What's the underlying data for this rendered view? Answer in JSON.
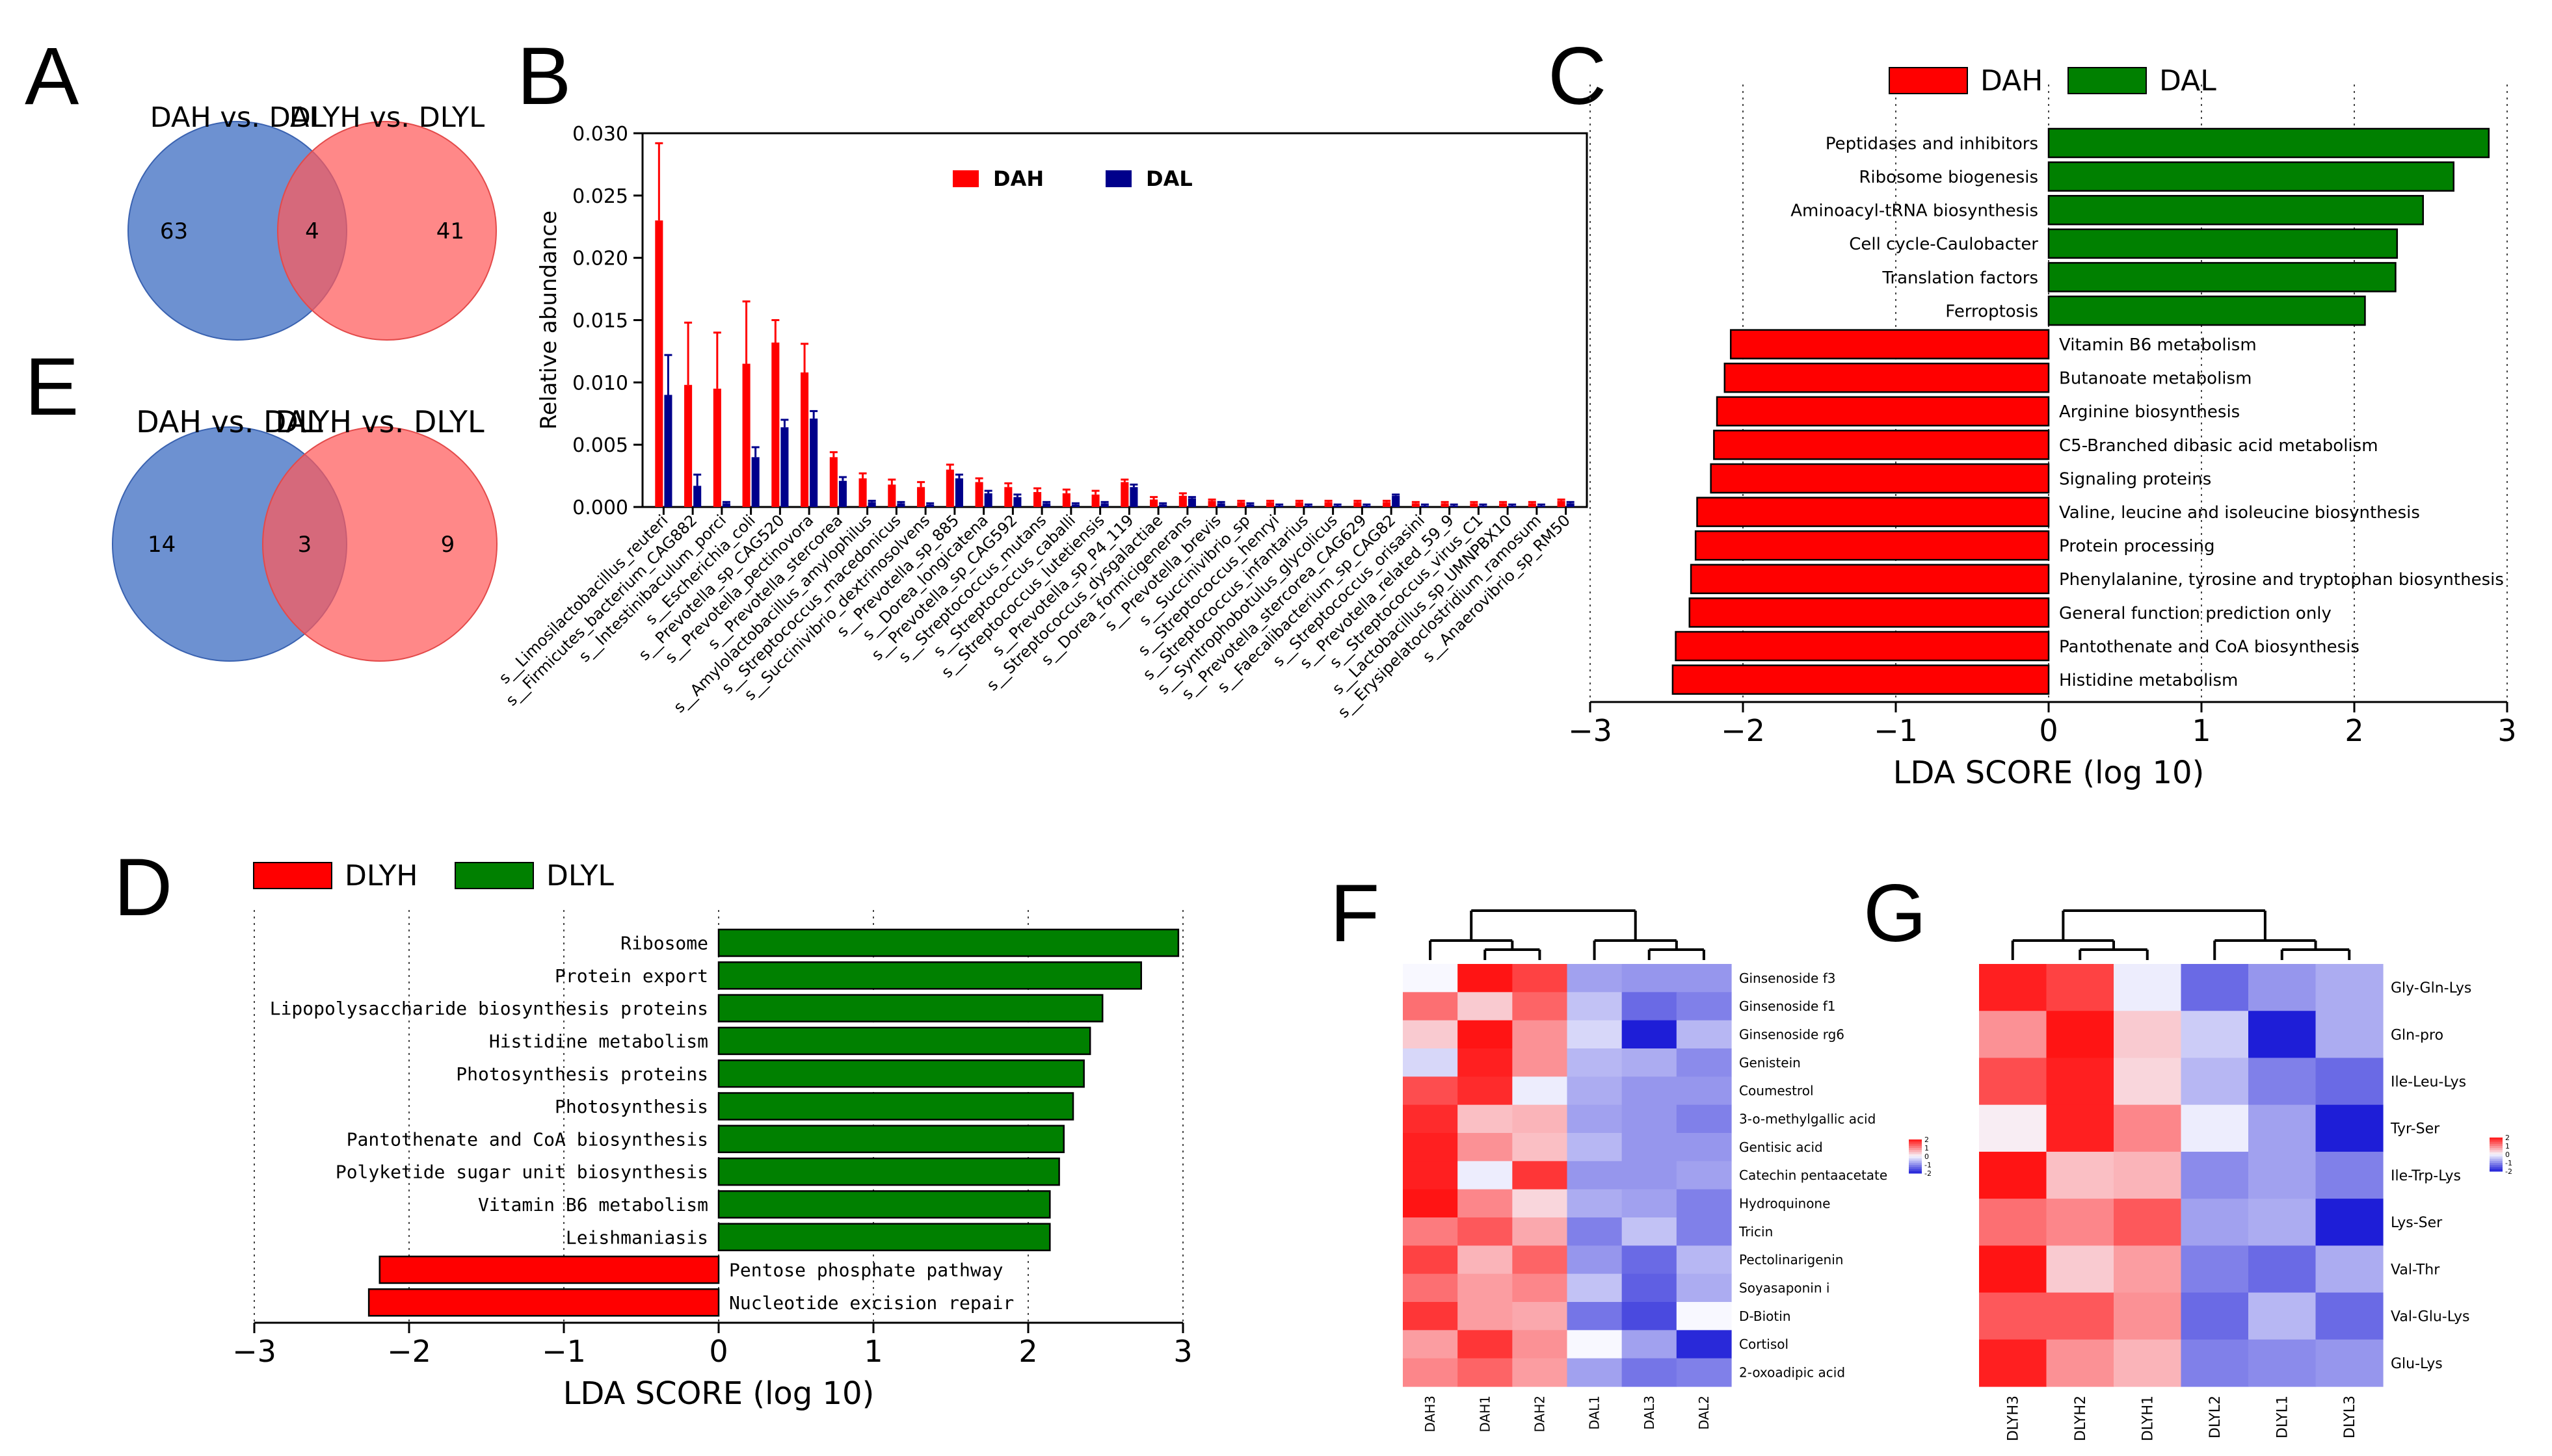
{
  "panels": {
    "A": "A",
    "B": "B",
    "C": "C",
    "D": "D",
    "E": "E",
    "F": "F",
    "G": "G"
  },
  "colors": {
    "red": "#ff0000",
    "green": "#008000",
    "navy": "#00008b",
    "venn_blue": "#4472c4",
    "venn_red": "#ff5a5a"
  },
  "chart_data": [
    {
      "id": "A",
      "type": "venn",
      "labels": [
        "DAH vs. DAL",
        "DLYH vs. DLYL"
      ],
      "left_only": "63",
      "overlap": "4",
      "right_only": "41"
    },
    {
      "id": "E",
      "type": "venn",
      "labels": [
        "DAH vs. DAL",
        "DLYH vs. DLYL"
      ],
      "left_only": "14",
      "overlap": "3",
      "right_only": "9"
    },
    {
      "id": "B",
      "type": "bar",
      "ylabel": "Relative abundance",
      "ylim": [
        0,
        0.03
      ],
      "yticks": [
        "0.000",
        "0.005",
        "0.010",
        "0.015",
        "0.020",
        "0.025",
        "0.030"
      ],
      "legend": [
        "DAH",
        "DAL"
      ],
      "categories": [
        "s__Limosilactobacillus_reuteri",
        "s__Firmicutes_bacterium_CAG882",
        "s__Intestinibaculum_porci",
        "s__Escherichia_coli",
        "s__Prevotella_sp_CAG520",
        "s__Prevotella_pectinovora",
        "s__Prevotella_stercorea",
        "s__Amylolactobacillus_amylophilus",
        "s__Streptococcus_macedonicus",
        "s__Succinivibrio_dextrinosolvens",
        "s__Prevotella_sp_885",
        "s__Dorea_longicatena",
        "s__Prevotella_sp_CAG592",
        "s__Streptococcus_mutans",
        "s__Streptococcus_caballi",
        "s__Streptococcus_lutetiensis",
        "s__Prevotella_sp_P4_119",
        "s__Streptococcus_dysgalactiae",
        "s__Dorea_formicigenerans",
        "s__Prevotella_brevis",
        "s__Succinivibrio_sp",
        "s__Streptococcus_henryi",
        "s__Streptococcus_infantarius",
        "s__Syntrophobotulus_glycolicus",
        "s__Prevotella_stercorea_CAG629",
        "s__Faecalibacterium_sp_CAG82",
        "s__Streptococcus_orisasini",
        "s__Prevotella_related_59_9",
        "s__Streptococcus_virus_C1",
        "s__Lactobacillus_sp_UMNPBX10",
        "s__Erysipelatoclostridium_ramosum",
        "s__Anaerovibrio_sp_RM50"
      ],
      "series": [
        {
          "name": "DAH",
          "values": [
            0.023,
            0.0098,
            0.0095,
            0.0115,
            0.0132,
            0.0108,
            0.004,
            0.0023,
            0.0018,
            0.0016,
            0.003,
            0.002,
            0.0016,
            0.0012,
            0.0011,
            0.001,
            0.002,
            0.0006,
            0.0009,
            0.0005,
            0.0004,
            0.0004,
            0.0004,
            0.0004,
            0.0004,
            0.0004,
            0.0003,
            0.0003,
            0.0003,
            0.0003,
            0.0003,
            0.0005
          ],
          "errors": [
            0.0062,
            0.005,
            0.0045,
            0.005,
            0.0018,
            0.0023,
            0.0004,
            0.0004,
            0.0004,
            0.0004,
            0.0004,
            0.0003,
            0.0003,
            0.0003,
            0.0003,
            0.0003,
            0.0002,
            0.0002,
            0.0002,
            0.0001,
            0.0001,
            0.0001,
            0.0001,
            0.0001,
            0.0001,
            0.0001,
            0.0001,
            0.0001,
            0.0001,
            0.0001,
            0.0001,
            0.0001
          ]
        },
        {
          "name": "DAL",
          "values": [
            0.009,
            0.0017,
            0.0003,
            0.004,
            0.0064,
            0.0071,
            0.0021,
            0.0004,
            0.0003,
            0.0002,
            0.0023,
            0.0011,
            0.0008,
            0.0003,
            0.0002,
            0.0003,
            0.0016,
            0.0002,
            0.0007,
            0.0003,
            0.0002,
            0.0001,
            0.0001,
            0.0001,
            0.0001,
            0.0009,
            0.0001,
            0.0001,
            0.0001,
            0.0001,
            0.0001,
            0.0003
          ],
          "errors": [
            0.0032,
            0.0009,
            0.0001,
            0.0008,
            0.0006,
            0.0006,
            0.0003,
            0.0001,
            0.0001,
            0.0001,
            0.0003,
            0.0002,
            0.0002,
            0.0001,
            0.0001,
            0.0001,
            0.0002,
            0.0001,
            0.0001,
            0.0001,
            0.0001,
            0.0001,
            0.0001,
            0.0001,
            0.0001,
            0.0001,
            0.0001,
            0.0001,
            0.0001,
            0.0001,
            0.0001,
            0.0001
          ]
        }
      ]
    },
    {
      "id": "C",
      "type": "bar",
      "orientation": "horizontal",
      "xlabel": "LDA SCORE (log 10)",
      "xlim": [
        -3,
        3
      ],
      "xticks": [
        "−3",
        "−2",
        "−1",
        "0",
        "1",
        "2",
        "3"
      ],
      "legend": [
        "DAH",
        "DAL"
      ],
      "categories": [
        "Peptidases and inhibitors",
        "Ribosome biogenesis",
        "Aminoacyl-tRNA biosynthesis",
        "Cell cycle-Caulobacter",
        "Translation factors",
        "Ferroptosis",
        "Vitamin B6 metabolism",
        "Butanoate metabolism",
        "Arginine biosynthesis",
        "C5-Branched dibasic acid metabolism",
        "Signaling proteins",
        "Valine, leucine and isoleucine biosynthesis",
        "Protein processing",
        "Phenylalanine, tyrosine and tryptophan biosynthesis",
        "General function prediction only",
        "Pantothenate and CoA biosynthesis",
        "Histidine metabolism"
      ],
      "values": [
        2.88,
        2.65,
        2.45,
        2.28,
        2.27,
        2.07,
        -2.08,
        -2.12,
        -2.17,
        -2.19,
        -2.21,
        -2.3,
        -2.31,
        -2.34,
        -2.35,
        -2.44,
        -2.46
      ]
    },
    {
      "id": "D",
      "type": "bar",
      "orientation": "horizontal",
      "xlabel": "LDA SCORE (log 10)",
      "xlim": [
        -3,
        3
      ],
      "xticks": [
        "−3",
        "−2",
        "−1",
        "0",
        "1",
        "2",
        "3"
      ],
      "legend": [
        "DLYH",
        "DLYL"
      ],
      "categories": [
        "Ribosome",
        "Protein export",
        "Lipopolysaccharide biosynthesis proteins",
        "Histidine metabolism",
        "Photosynthesis proteins",
        "Photosynthesis",
        "Pantothenate and CoA biosynthesis",
        "Polyketide sugar unit biosynthesis",
        "Vitamin B6 metabolism",
        "Leishmaniasis",
        "Pentose phosphate pathway",
        "Nucleotide excision repair"
      ],
      "values": [
        2.97,
        2.73,
        2.48,
        2.4,
        2.36,
        2.29,
        2.23,
        2.2,
        2.14,
        2.14,
        -2.19,
        -2.26
      ]
    },
    {
      "id": "F",
      "type": "heatmap",
      "columns": [
        "DAH3",
        "DAH1",
        "DAH2",
        "DAL1",
        "DAL3",
        "DAL2"
      ],
      "rows": [
        "Ginsenoside f3",
        "Ginsenoside f1",
        "Ginsenoside rg6",
        "Genistein",
        "Coumestrol",
        "3-o-methylgallic acid",
        "Gentisic acid",
        "Catechin pentaacetate",
        "Hydroquinone",
        "Tricin",
        "Pectolinarigenin",
        "Soyasaponin i",
        "D-Biotin",
        "Cortisol",
        "2-oxoadipic acid"
      ],
      "values": [
        [
          0.0,
          2.0,
          1.6,
          -0.8,
          -0.9,
          -0.9
        ],
        [
          1.2,
          0.4,
          1.3,
          -0.5,
          -1.3,
          -1.1
        ],
        [
          0.4,
          2.1,
          0.9,
          -0.3,
          -2.0,
          -0.6
        ],
        [
          -0.3,
          1.9,
          0.9,
          -0.6,
          -0.7,
          -1.0
        ],
        [
          1.5,
          1.8,
          -0.1,
          -0.7,
          -0.9,
          -0.9
        ],
        [
          1.8,
          0.5,
          0.6,
          -0.8,
          -0.9,
          -1.1
        ],
        [
          1.9,
          0.9,
          0.5,
          -0.6,
          -0.9,
          -0.9
        ],
        [
          1.9,
          -0.1,
          1.7,
          -0.9,
          -0.9,
          -0.8
        ],
        [
          2.0,
          1.0,
          0.3,
          -0.7,
          -0.8,
          -1.1
        ],
        [
          1.1,
          1.4,
          0.7,
          -1.1,
          -0.5,
          -1.1
        ],
        [
          1.6,
          0.6,
          1.3,
          -0.9,
          -1.3,
          -0.6
        ],
        [
          1.2,
          0.8,
          1.0,
          -0.5,
          -1.4,
          -0.7
        ],
        [
          1.7,
          0.8,
          0.7,
          -1.2,
          -1.6,
          0.0
        ],
        [
          0.8,
          1.7,
          0.9,
          0.0,
          -0.8,
          -1.9
        ],
        [
          1.0,
          1.3,
          0.8,
          -0.8,
          -1.2,
          -1.1
        ]
      ],
      "colorbar_ticks": [
        "2",
        "1",
        "0",
        "-1",
        "-2"
      ]
    },
    {
      "id": "G",
      "type": "heatmap",
      "columns": [
        "DLYH3",
        "DLYH2",
        "DLYH1",
        "DLYL2",
        "DLYL1",
        "DLYL3"
      ],
      "rows": [
        "Gly-Gln-Lys",
        "Gln-pro",
        "Ile-Leu-Lys",
        "Tyr-Ser",
        "Ile-Trp-Lys",
        "Lys-Ser",
        "Val-Thr",
        "Val-Glu-Lys",
        "Glu-Lys"
      ],
      "values": [
        [
          1.9,
          1.6,
          -0.1,
          -1.3,
          -0.9,
          -0.7
        ],
        [
          0.9,
          2.0,
          0.4,
          -0.4,
          -2.0,
          -0.7
        ],
        [
          1.5,
          1.9,
          0.3,
          -0.6,
          -1.1,
          -1.3
        ],
        [
          0.1,
          1.9,
          1.0,
          -0.1,
          -0.8,
          -2.0
        ],
        [
          2.0,
          0.5,
          0.6,
          -1.0,
          -0.8,
          -1.1
        ],
        [
          1.2,
          1.0,
          1.4,
          -0.8,
          -0.7,
          -2.0
        ],
        [
          2.0,
          0.4,
          0.8,
          -1.1,
          -1.3,
          -0.7
        ],
        [
          1.4,
          1.4,
          0.9,
          -1.3,
          -0.6,
          -1.3
        ],
        [
          1.9,
          0.9,
          0.6,
          -1.1,
          -1.0,
          -0.9
        ]
      ],
      "colorbar_ticks": [
        "2",
        "1",
        "0",
        "-1",
        "-2"
      ]
    }
  ]
}
